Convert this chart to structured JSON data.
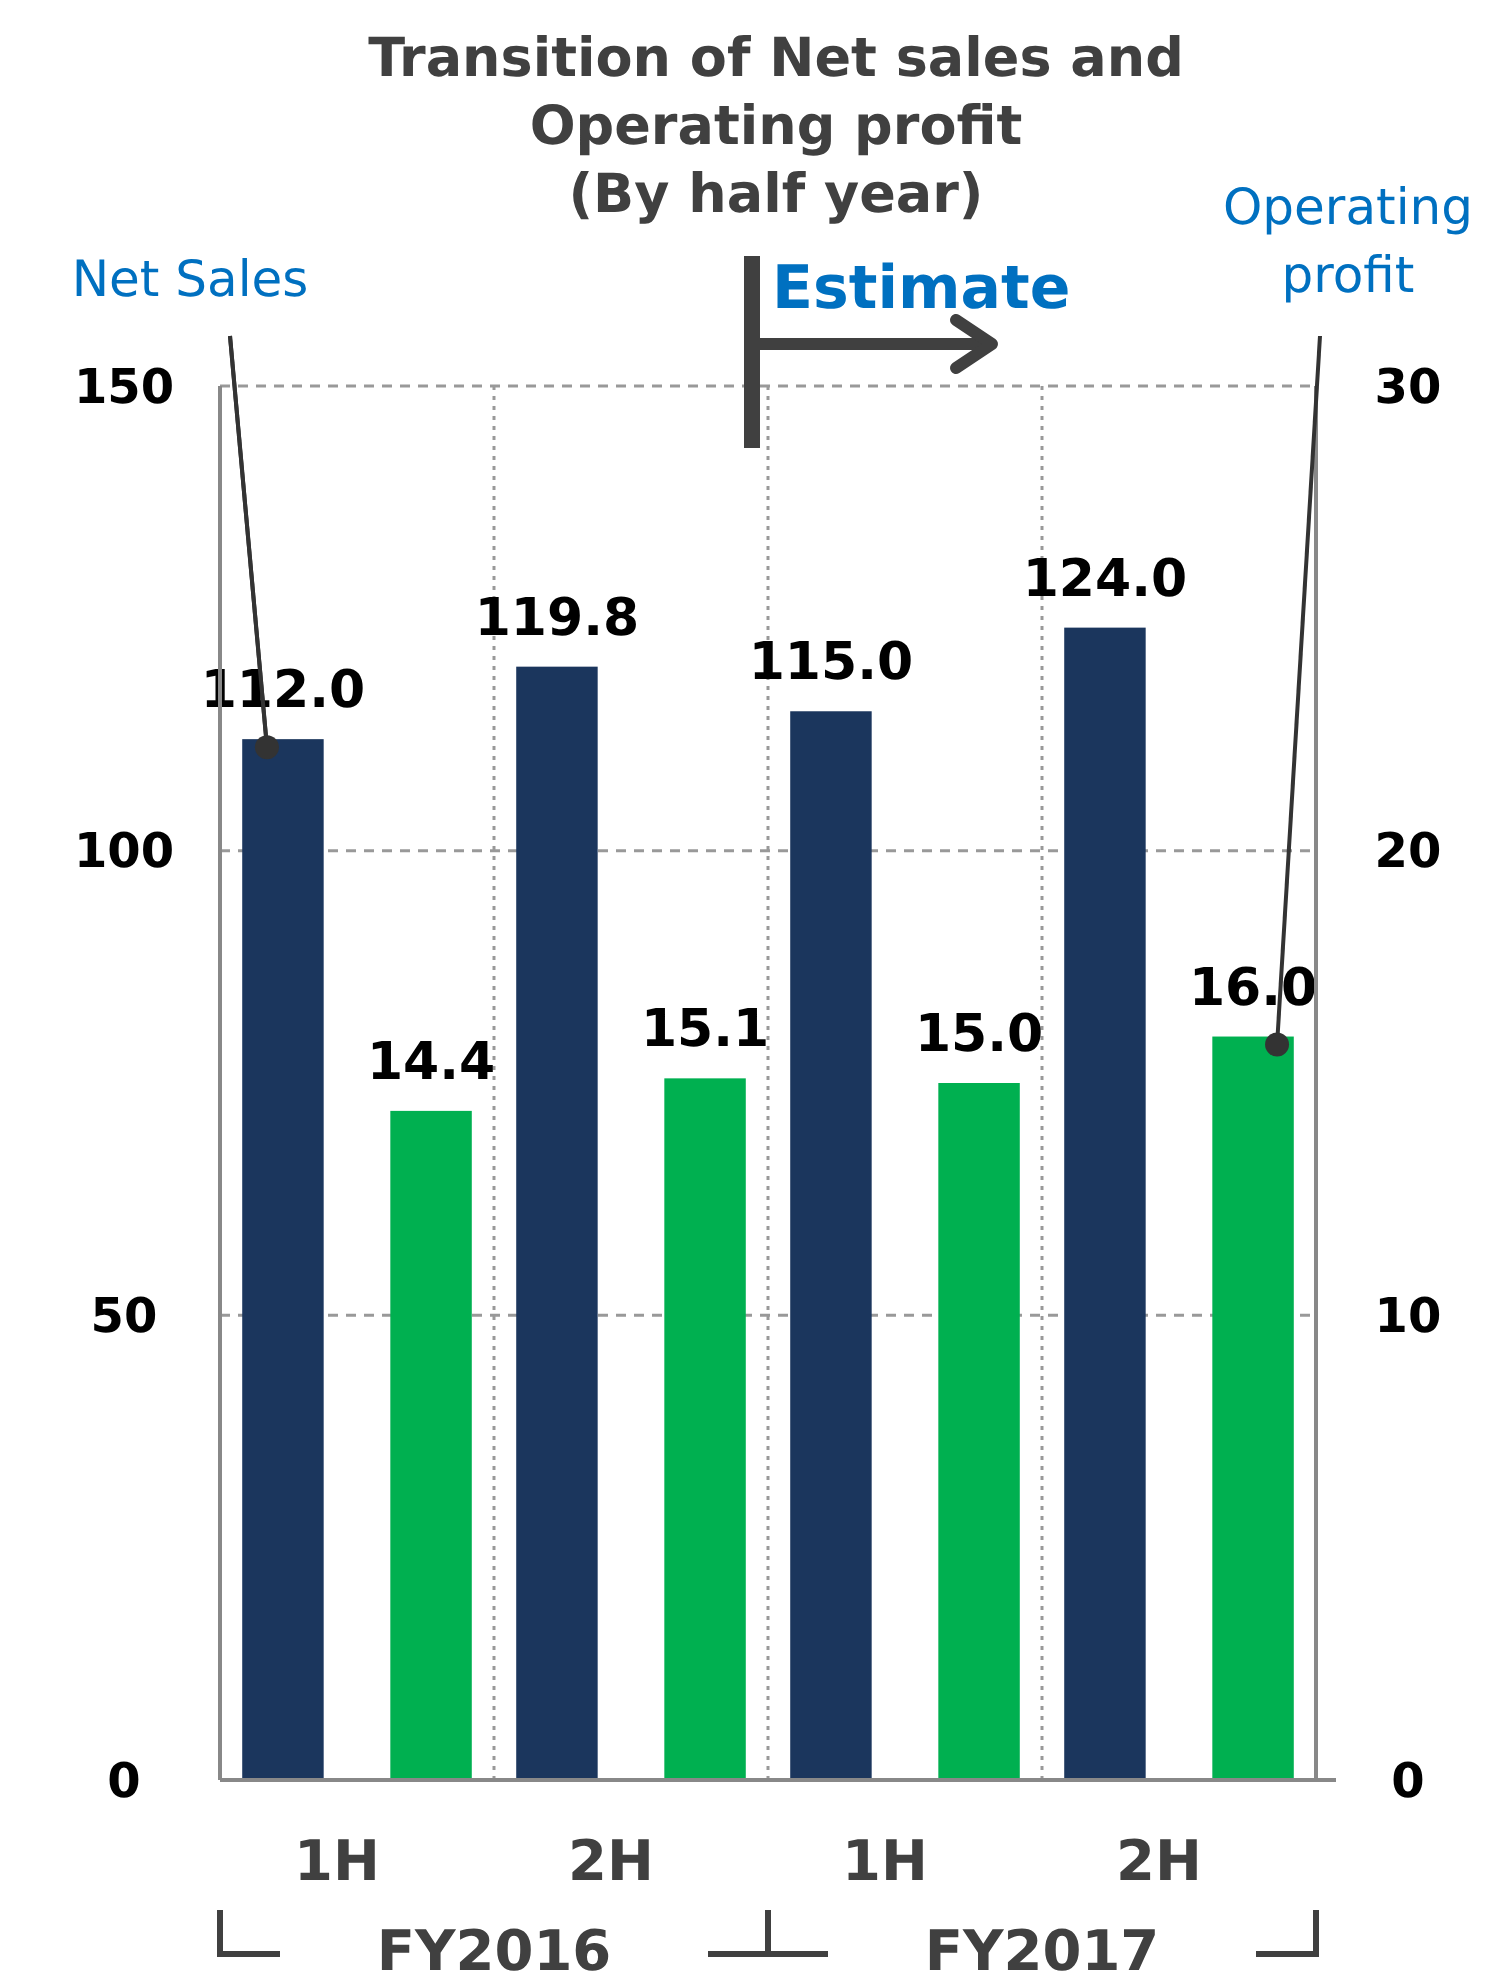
{
  "chart_data": {
    "type": "bar",
    "title": "Transition of Net sales and Operating profit (By half year)",
    "categories": [
      "1H",
      "2H",
      "1H",
      "2H"
    ],
    "series": [
      {
        "name": "Net Sales",
        "color": "#1b365d",
        "values": [
          112.0,
          119.8,
          115.0,
          124.0
        ],
        "value_labels": [
          "112.0",
          "119.8",
          "115.0",
          "124.0"
        ]
      },
      {
        "name": "Operating profit",
        "color": "#00b050",
        "axis": "y2",
        "values": [
          14.4,
          15.1,
          15.0,
          16.0
        ],
        "value_labels": [
          "14.4",
          "15.1",
          "15.0",
          "16.0"
        ]
      }
    ],
    "ylim": [
      0,
      150
    ],
    "yticks": [
      0,
      50,
      100,
      150
    ],
    "y2lim": [
      0,
      30
    ],
    "y2ticks": [
      0,
      10,
      20,
      30
    ],
    "grid": true,
    "annotations": [
      "Estimate",
      "FY2016",
      "FY2017"
    ]
  }
}
